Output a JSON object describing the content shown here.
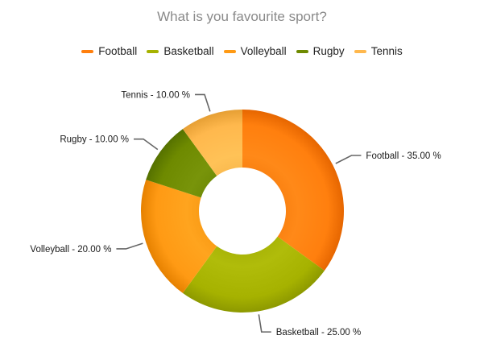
{
  "chart_data": {
    "type": "pie",
    "title": "What is you favourite sport?",
    "variant": "donut",
    "legend_position": "top-center",
    "series": [
      {
        "name": "Football",
        "value": 35.0,
        "label": "Football - 35.00 %",
        "color": "#ff7f0e"
      },
      {
        "name": "Basketball",
        "value": 25.0,
        "label": "Basketball - 25.00 %",
        "color": "#a6b200"
      },
      {
        "name": "Volleyball",
        "value": 20.0,
        "label": "Volleyball - 20.00 %",
        "color": "#ff9a14"
      },
      {
        "name": "Rugby",
        "value": 10.0,
        "label": "Rugby - 10.00 %",
        "color": "#6e8a00"
      },
      {
        "name": "Tennis",
        "value": 10.0,
        "label": "Tennis - 10.00 %",
        "color": "#ffb84d"
      }
    ]
  }
}
